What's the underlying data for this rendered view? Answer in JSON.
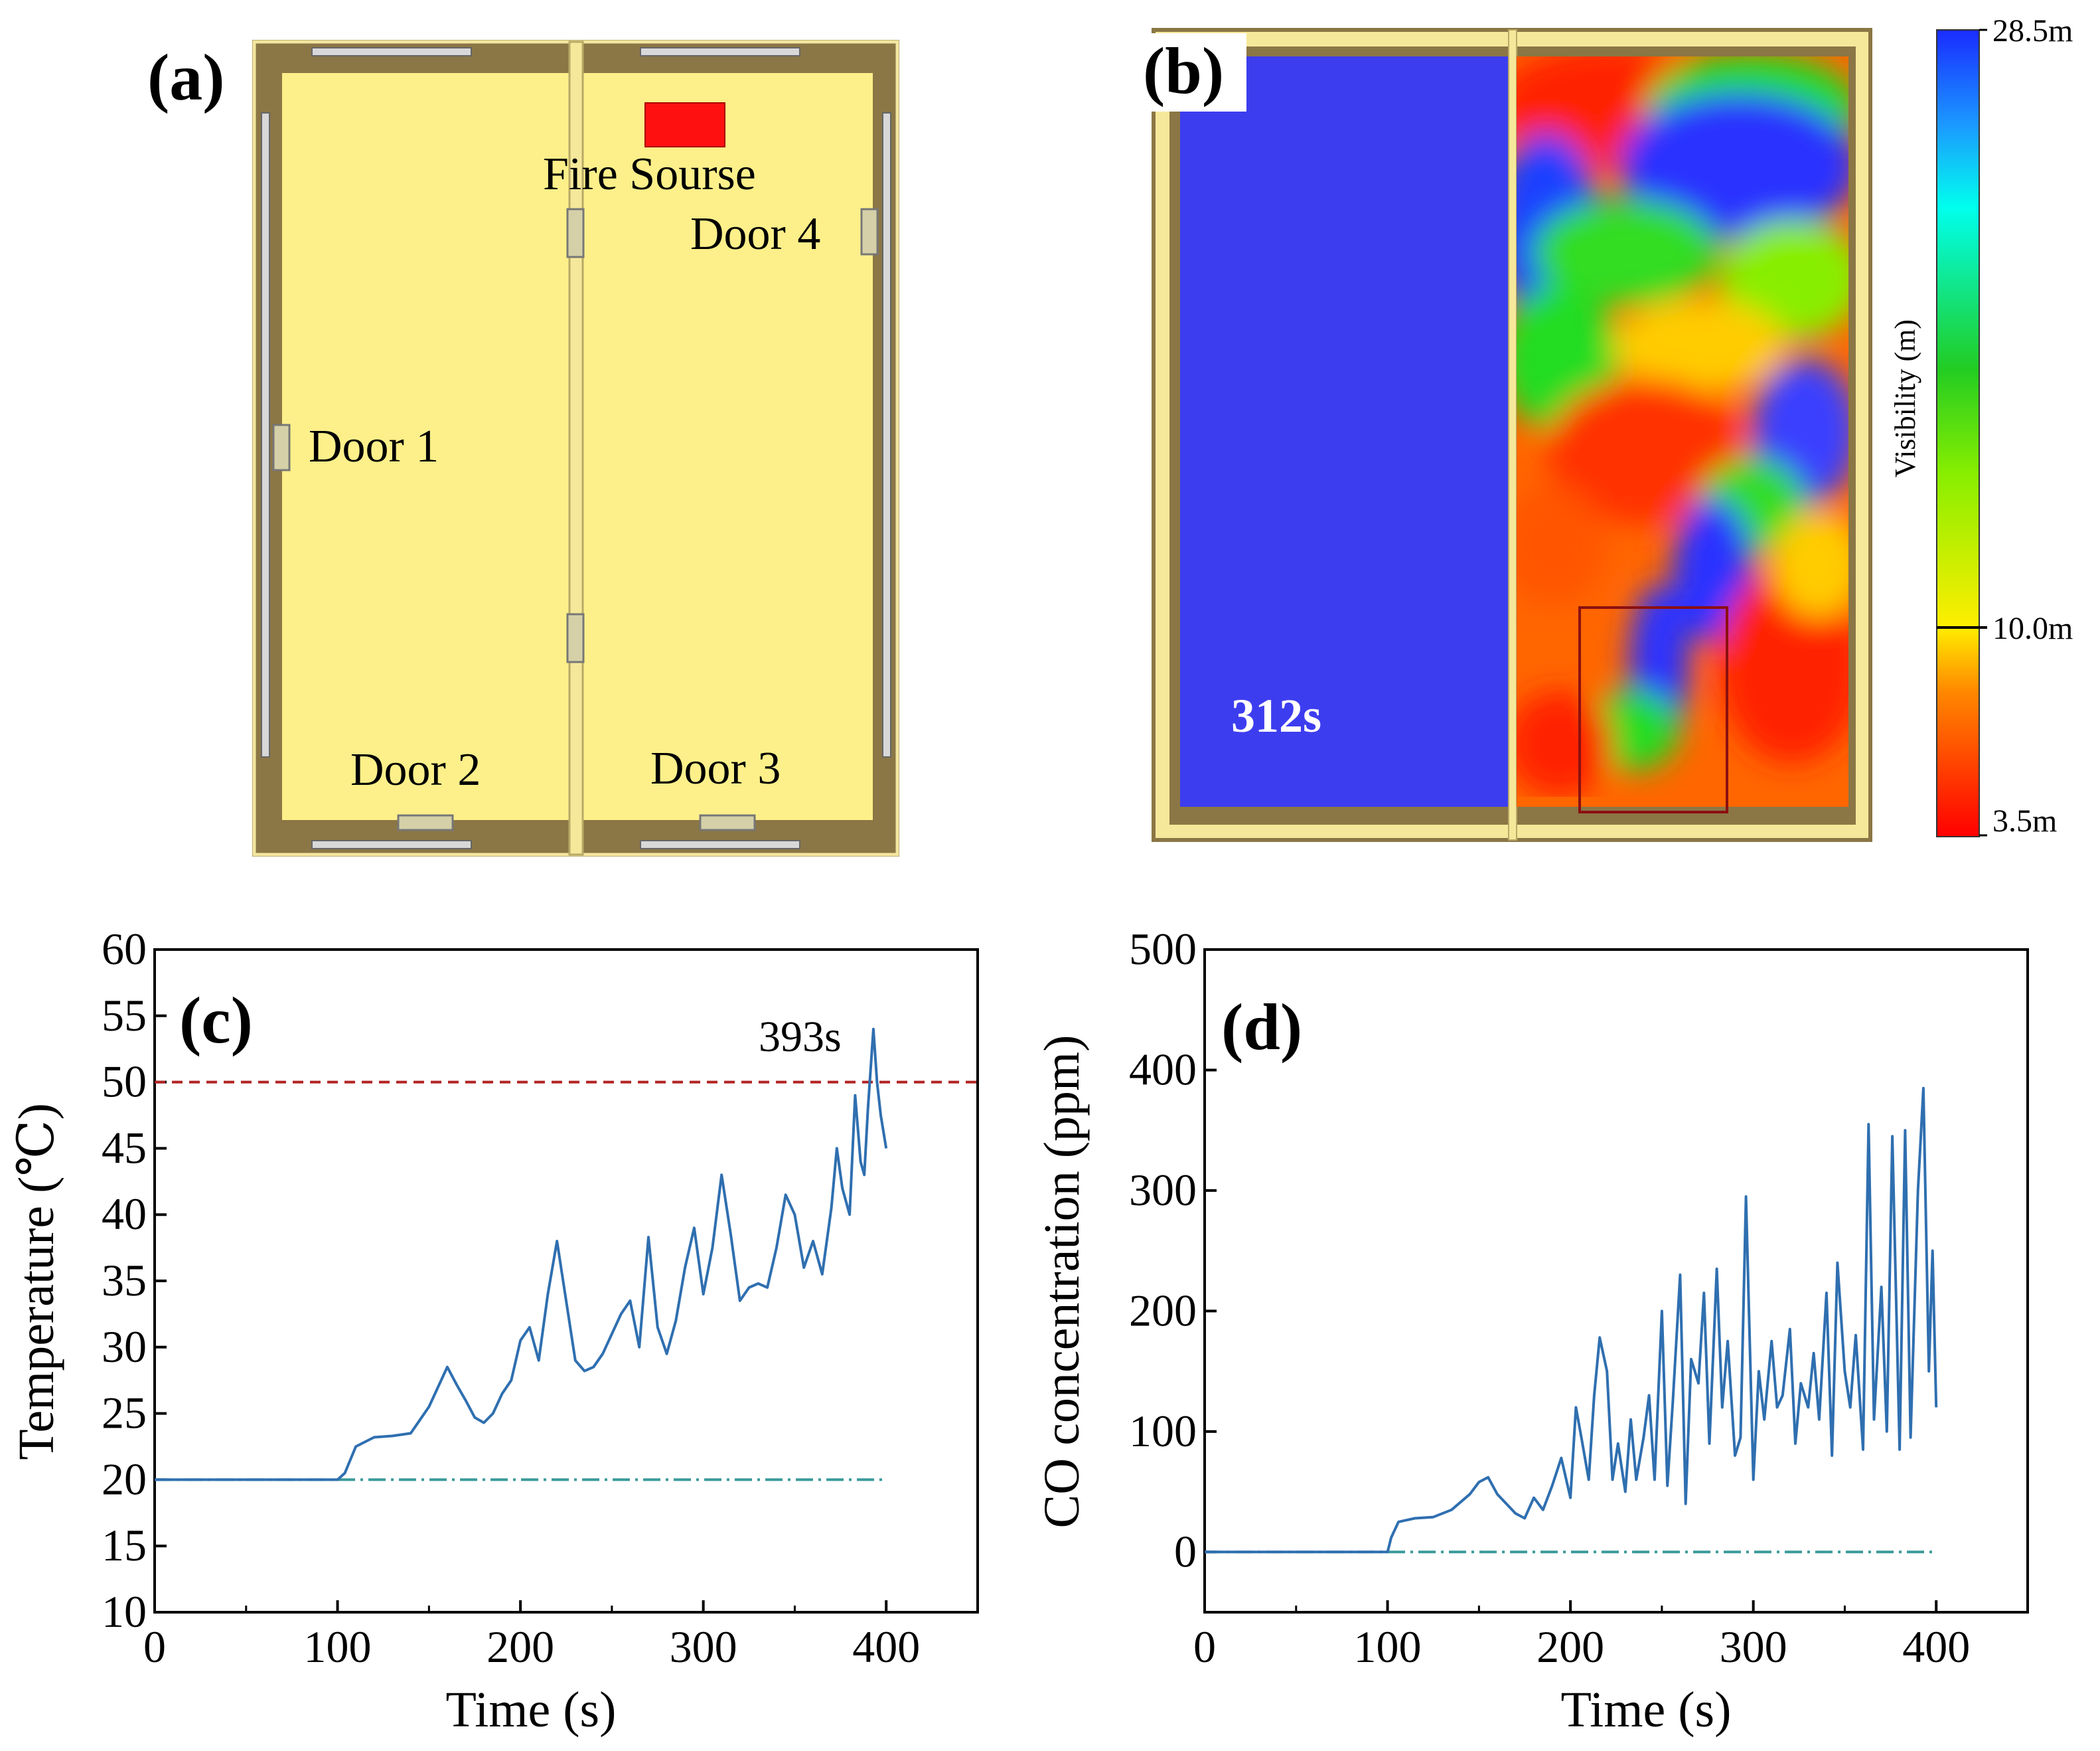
{
  "panel_a": {
    "letter": "(a)",
    "fire_label": "Fire Sourse",
    "doors": [
      "Door 1",
      "Door 2",
      "Door 3",
      "Door 4"
    ],
    "fire_color": "#ff1010",
    "floor_color": "#fdf08a",
    "wall_color": "#8b7645"
  },
  "panel_b": {
    "letter": "(b)",
    "time_label": "312s",
    "colorbar": {
      "title": "Visibility (m)",
      "ticks": [
        "28.5m",
        "10.0m",
        "3.5m"
      ],
      "min": 3.5,
      "max": 28.5,
      "threshold": 10.0,
      "colors": [
        "#ff0000",
        "#ff8800",
        "#ffee00",
        "#22cc22",
        "#00ffee",
        "#1a2cff"
      ]
    }
  },
  "chart_data": [
    {
      "id": "c",
      "letter": "(c)",
      "type": "line",
      "xlabel": "Time (s)",
      "ylabel": "Temperature (℃)",
      "xlim": [
        0,
        450
      ],
      "ylim": [
        10,
        60
      ],
      "xticks": [
        0,
        100,
        200,
        300,
        400
      ],
      "yticks": [
        10,
        15,
        20,
        25,
        30,
        35,
        40,
        45,
        50,
        55,
        60
      ],
      "annotation": "393s",
      "threshold": 50,
      "baseline": 20,
      "series": [
        {
          "name": "Temperature",
          "x": [
            0,
            100,
            104,
            110,
            120,
            130,
            140,
            150,
            155,
            160,
            165,
            170,
            175,
            180,
            185,
            190,
            195,
            200,
            205,
            210,
            215,
            220,
            225,
            230,
            235,
            240,
            245,
            250,
            255,
            260,
            265,
            270,
            275,
            280,
            285,
            290,
            295,
            300,
            305,
            310,
            315,
            320,
            325,
            330,
            335,
            340,
            345,
            350,
            355,
            360,
            365,
            370,
            373,
            376,
            380,
            383,
            386,
            388,
            390,
            393,
            395,
            397,
            400
          ],
          "y": [
            20,
            20,
            20.5,
            22.5,
            23.2,
            23.3,
            23.5,
            25.5,
            27,
            28.5,
            27.2,
            26,
            24.7,
            24.3,
            25,
            26.5,
            27.5,
            30.5,
            31.5,
            29,
            34,
            38,
            33.5,
            29,
            28.2,
            28.5,
            29.5,
            31,
            32.5,
            33.5,
            30,
            38.3,
            31.5,
            29.5,
            32,
            36,
            39,
            34,
            37.5,
            43,
            38.5,
            33.5,
            34.5,
            34.8,
            34.5,
            37.5,
            41.5,
            40,
            36,
            38,
            35.5,
            40.5,
            45,
            42,
            40,
            49,
            44,
            43,
            48,
            54,
            50,
            47.5,
            45
          ]
        }
      ]
    },
    {
      "id": "d",
      "letter": "(d)",
      "type": "line",
      "xlabel": "Time (s)",
      "ylabel": "CO concentration (ppm)",
      "xlim": [
        0,
        450
      ],
      "ylim": [
        -50,
        500
      ],
      "xticks": [
        0,
        100,
        200,
        300,
        400
      ],
      "yticks": [
        0,
        100,
        200,
        300,
        400,
        500
      ],
      "baseline": 0,
      "series": [
        {
          "name": "CO",
          "x": [
            0,
            100,
            102,
            106,
            115,
            125,
            135,
            145,
            150,
            155,
            160,
            165,
            170,
            175,
            180,
            185,
            190,
            195,
            200,
            203,
            206,
            210,
            213,
            216,
            220,
            223,
            226,
            230,
            233,
            236,
            240,
            243,
            246,
            250,
            253,
            256,
            260,
            263,
            266,
            270,
            273,
            276,
            280,
            283,
            286,
            290,
            293,
            296,
            300,
            303,
            306,
            310,
            313,
            316,
            320,
            323,
            326,
            330,
            333,
            336,
            340,
            343,
            346,
            350,
            353,
            356,
            360,
            363,
            366,
            370,
            373,
            376,
            380,
            383,
            386,
            390,
            393,
            396,
            398,
            400
          ],
          "y": [
            0,
            0,
            12,
            25,
            28,
            29,
            35,
            48,
            58,
            62,
            48,
            40,
            32,
            28,
            45,
            35,
            55,
            78,
            45,
            120,
            95,
            60,
            130,
            178,
            150,
            60,
            90,
            50,
            110,
            60,
            95,
            130,
            60,
            200,
            55,
            125,
            230,
            40,
            160,
            140,
            215,
            90,
            235,
            120,
            175,
            80,
            95,
            295,
            60,
            150,
            110,
            175,
            120,
            130,
            185,
            90,
            140,
            120,
            165,
            110,
            215,
            80,
            240,
            150,
            120,
            180,
            85,
            355,
            110,
            220,
            100,
            345,
            85,
            350,
            95,
            300,
            385,
            150,
            250,
            120
          ]
        }
      ]
    }
  ]
}
